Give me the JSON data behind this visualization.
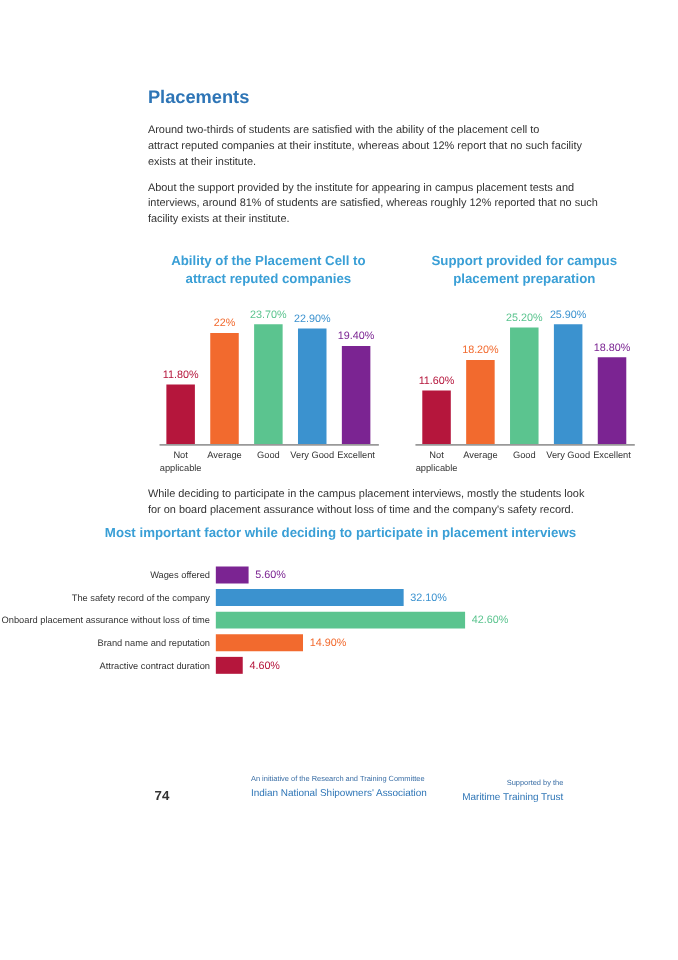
{
  "chart_data": [
    {
      "type": "bar",
      "title": "Ability of the Placement Cell to attract reputed companies",
      "categories": [
        "Not applicable",
        "Average",
        "Good",
        "Very Good",
        "Excellent"
      ],
      "values": [
        11.8,
        22,
        23.7,
        22.9,
        19.4
      ],
      "value_labels": [
        "11.80%",
        "22%",
        "23.70%",
        "22.90%",
        "19.40%"
      ],
      "colors": [
        "#b5163c",
        "#f26a2e",
        "#5bc48f",
        "#3b92cf",
        "#7b2492"
      ],
      "annotations": [
        "Placements",
        "Around two-thirds of students are satisfied with the ability of the placement cell to attract reputed companies at their institute, whereas about 12% report that no such facility exists at their institute.",
        "About the support provided by the institute for appearing in campus placement tests and interviews, around 81% of students are satisfied, whereas roughly 12% reported that no such facility exists at their institute."
      ]
    },
    {
      "type": "bar",
      "title": "Support provided for campus placement preparation",
      "categories": [
        "Not applicable",
        "Average",
        "Good",
        "Very Good",
        "Excellent"
      ],
      "values": [
        11.6,
        18.2,
        25.2,
        25.9,
        18.8
      ],
      "value_labels": [
        "11.60%",
        "18.20%",
        "25.20%",
        "25.90%",
        "18.80%"
      ],
      "colors": [
        "#b5163c",
        "#f26a2e",
        "#5bc48f",
        "#3b92cf",
        "#7b2492"
      ]
    },
    {
      "type": "bar",
      "orientation": "horizontal",
      "title": "Most important factor while deciding to participate in placement interviews",
      "categories": [
        "Wages offered",
        "The safety record of the company",
        "Onboard placement assurance without loss of time",
        "Brand name and reputation",
        "Attractive contract duration"
      ],
      "values": [
        5.6,
        32.1,
        42.6,
        14.9,
        4.6
      ],
      "value_labels": [
        "5.60%",
        "32.10%",
        "42.60%",
        "14.90%",
        "4.60%"
      ],
      "colors": [
        "#7b2492",
        "#3b92cf",
        "#5bc48f",
        "#f26a2e",
        "#b5163c"
      ],
      "annotations": [
        "While deciding to participate in the campus placement interviews, mostly the students look for on board placement assurance without loss of time and the company's safety record.",
        "An initiative of the Research and Training Committee",
        "Indian National Shipowners' Association",
        "Supported by the",
        "Maritime Training Trust",
        "74"
      ]
    }
  ]
}
